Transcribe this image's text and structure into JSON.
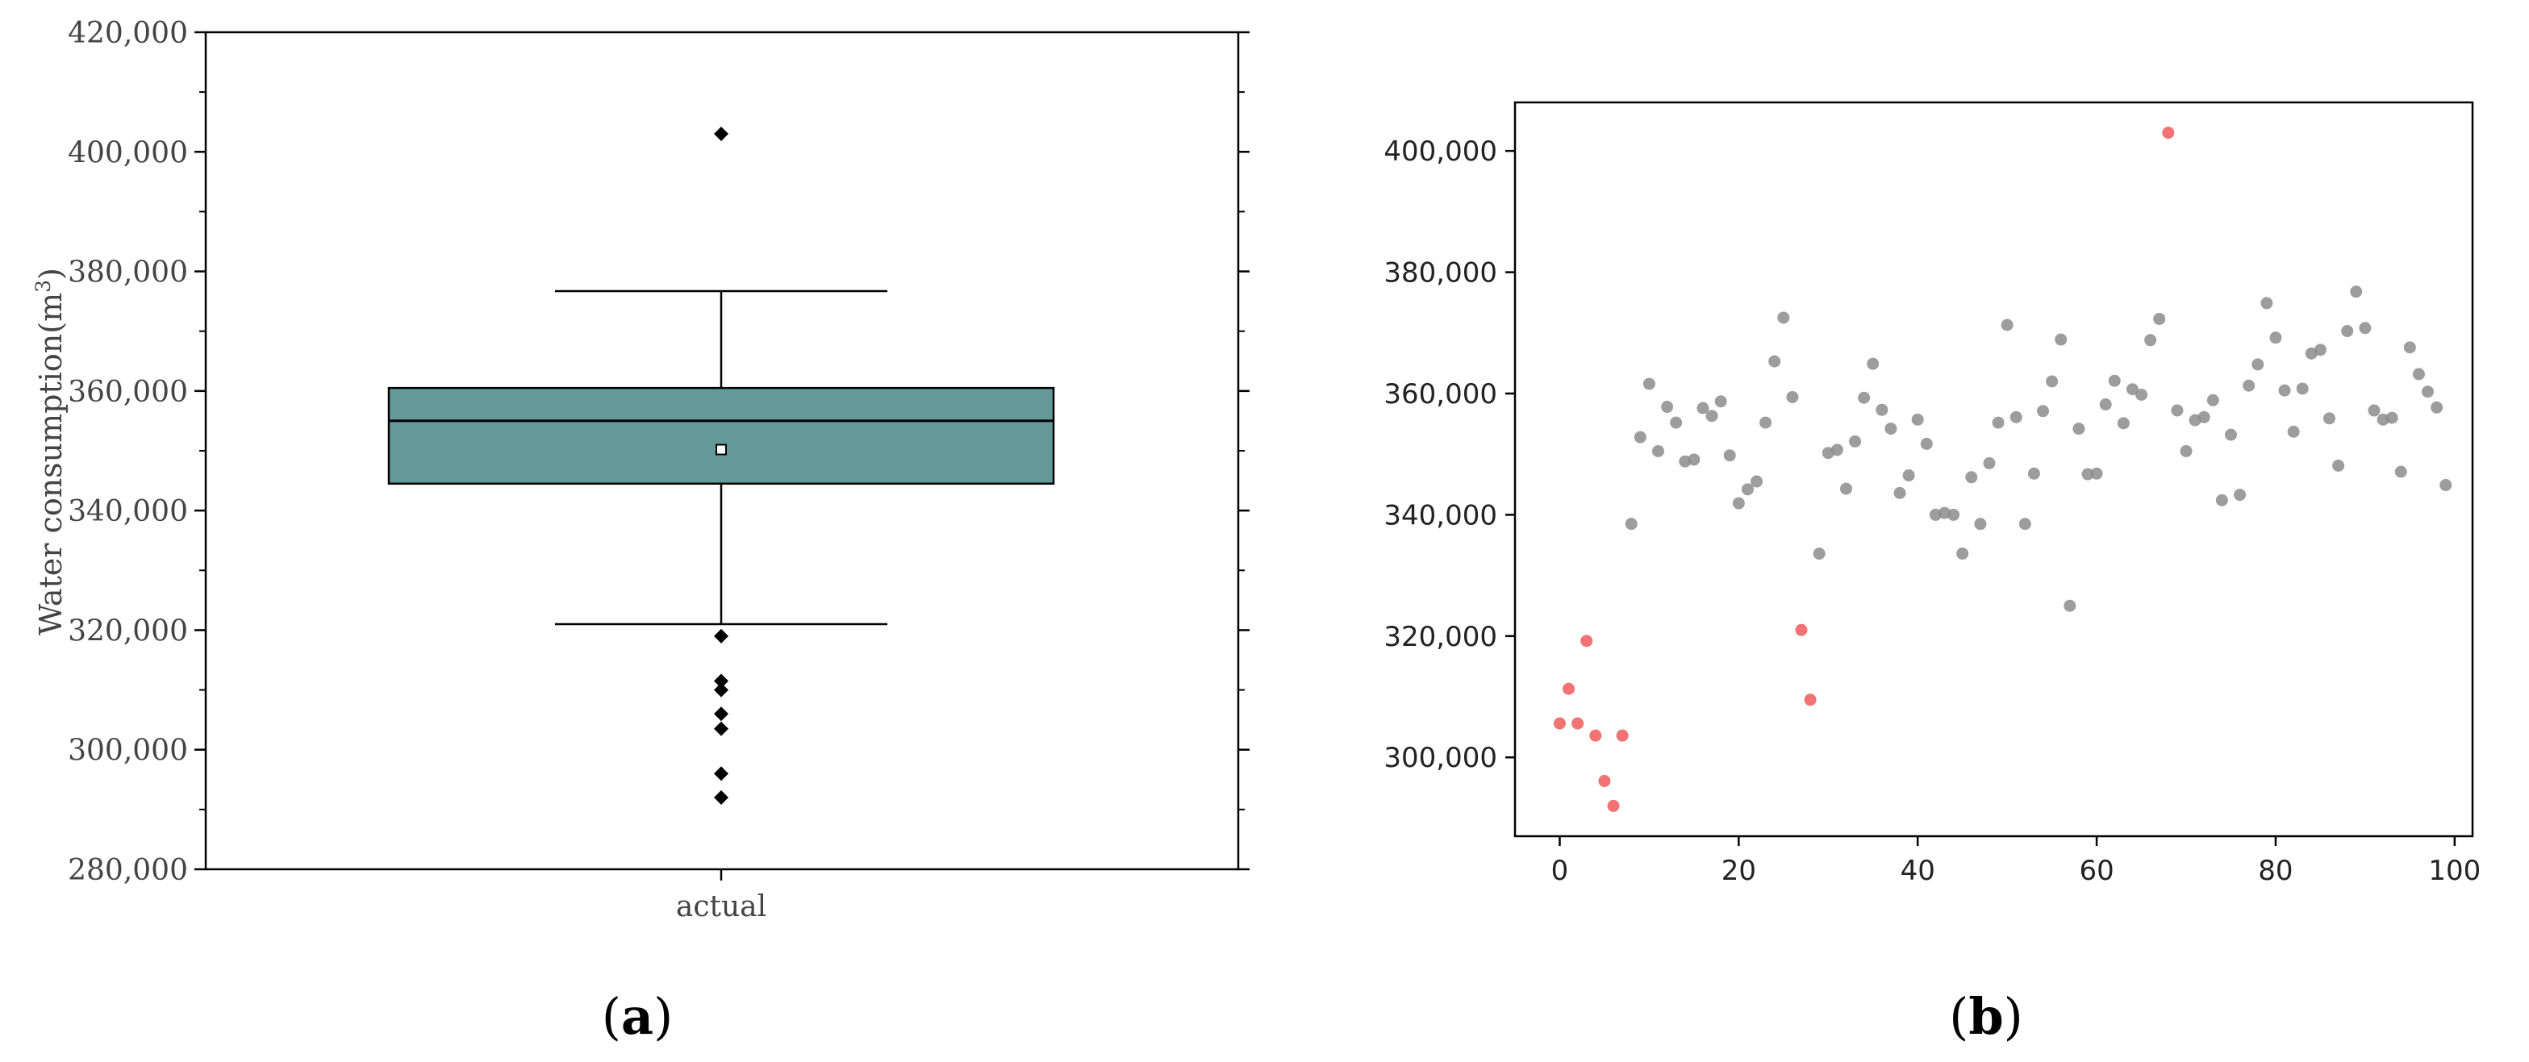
{
  "chart_data": [
    {
      "type": "box",
      "panel_label": "a",
      "ylabel": "Water consumption(m",
      "ylabel_superscript": "3",
      "ylabel_suffix": ")",
      "ylim": [
        280000,
        420000
      ],
      "yticks": [
        280000,
        300000,
        320000,
        340000,
        360000,
        380000,
        400000,
        420000
      ],
      "ytick_labels": [
        "280,000",
        "300,000",
        "320,000",
        "340,000",
        "360,000",
        "380,000",
        "400,000",
        "420,000"
      ],
      "categories": [
        "actual"
      ],
      "box": {
        "whisker_low": 321000,
        "q1": 344500,
        "median": 355000,
        "q3": 360500,
        "whisker_high": 376700,
        "mean": 350200
      },
      "outliers": [
        403000,
        319000,
        311500,
        310000,
        306000,
        303500,
        296000,
        292000
      ],
      "colors": {
        "box_fill": "#659a9a",
        "outline": "#000000"
      }
    },
    {
      "type": "scatter",
      "panel_label": "b",
      "xlim": [
        -5,
        102
      ],
      "ylim": [
        287000,
        408000
      ],
      "xticks": [
        0,
        20,
        40,
        60,
        80,
        100
      ],
      "xtick_labels": [
        "0",
        "20",
        "40",
        "60",
        "80",
        "100"
      ],
      "yticks": [
        300000,
        320000,
        340000,
        360000,
        380000,
        400000
      ],
      "ytick_labels": [
        "300,000",
        "320,000",
        "340,000",
        "360,000",
        "380,000",
        "400,000"
      ],
      "series": [
        {
          "colorRole": "normal",
          "color": "#8c8c8c",
          "points": [
            [
              8,
              338500
            ],
            [
              9,
              352800
            ],
            [
              10,
              361600
            ],
            [
              11,
              350500
            ],
            [
              12,
              357800
            ],
            [
              13,
              355200
            ],
            [
              14,
              348800
            ],
            [
              15,
              349100
            ],
            [
              16,
              357600
            ],
            [
              17,
              356300
            ],
            [
              18,
              358700
            ],
            [
              19,
              349800
            ],
            [
              20,
              341900
            ],
            [
              21,
              344200
            ],
            [
              22,
              345500
            ],
            [
              23,
              355200
            ],
            [
              24,
              365300
            ],
            [
              25,
              372500
            ],
            [
              26,
              359400
            ],
            [
              29,
              333600
            ],
            [
              30,
              350200
            ],
            [
              31,
              350700
            ],
            [
              32,
              344300
            ],
            [
              33,
              352100
            ],
            [
              34,
              359300
            ],
            [
              35,
              364900
            ],
            [
              36,
              357300
            ],
            [
              37,
              354200
            ],
            [
              38,
              343600
            ],
            [
              39,
              346500
            ],
            [
              40,
              355700
            ],
            [
              41,
              351700
            ],
            [
              42,
              340000
            ],
            [
              43,
              340300
            ],
            [
              44,
              340000
            ],
            [
              45,
              333600
            ],
            [
              46,
              346200
            ],
            [
              47,
              338500
            ],
            [
              48,
              348500
            ],
            [
              49,
              355200
            ],
            [
              50,
              371300
            ],
            [
              51,
              356100
            ],
            [
              52,
              338500
            ],
            [
              53,
              346800
            ],
            [
              54,
              357100
            ],
            [
              55,
              362000
            ],
            [
              56,
              368900
            ],
            [
              57,
              325000
            ],
            [
              58,
              354200
            ],
            [
              59,
              346700
            ],
            [
              60,
              346800
            ],
            [
              61,
              358200
            ],
            [
              62,
              362100
            ],
            [
              63,
              355100
            ],
            [
              64,
              360700
            ],
            [
              65,
              359800
            ],
            [
              66,
              368800
            ],
            [
              67,
              372300
            ],
            [
              69,
              357200
            ],
            [
              70,
              350500
            ],
            [
              71,
              355600
            ],
            [
              72,
              356100
            ],
            [
              73,
              358900
            ],
            [
              74,
              342400
            ],
            [
              75,
              353200
            ],
            [
              76,
              343300
            ],
            [
              77,
              361300
            ],
            [
              78,
              364800
            ],
            [
              79,
              374900
            ],
            [
              80,
              369200
            ],
            [
              81,
              360500
            ],
            [
              82,
              353700
            ],
            [
              83,
              360800
            ],
            [
              84,
              366600
            ],
            [
              85,
              367200
            ],
            [
              86,
              355900
            ],
            [
              87,
              348100
            ],
            [
              88,
              370300
            ],
            [
              89,
              376800
            ],
            [
              90,
              370800
            ],
            [
              91,
              357200
            ],
            [
              92,
              355700
            ],
            [
              93,
              356000
            ],
            [
              94,
              347100
            ],
            [
              95,
              367600
            ],
            [
              96,
              363200
            ],
            [
              97,
              360300
            ],
            [
              98,
              357700
            ],
            [
              99,
              344900
            ]
          ]
        },
        {
          "colorRole": "outlier",
          "color": "#f05a5a",
          "points": [
            [
              0,
              305600
            ],
            [
              1,
              311300
            ],
            [
              2,
              305600
            ],
            [
              3,
              319200
            ],
            [
              4,
              303600
            ],
            [
              5,
              296100
            ],
            [
              6,
              292000
            ],
            [
              7,
              303600
            ],
            [
              27,
              321000
            ],
            [
              28,
              309500
            ],
            [
              68,
              403000
            ]
          ]
        }
      ]
    }
  ]
}
